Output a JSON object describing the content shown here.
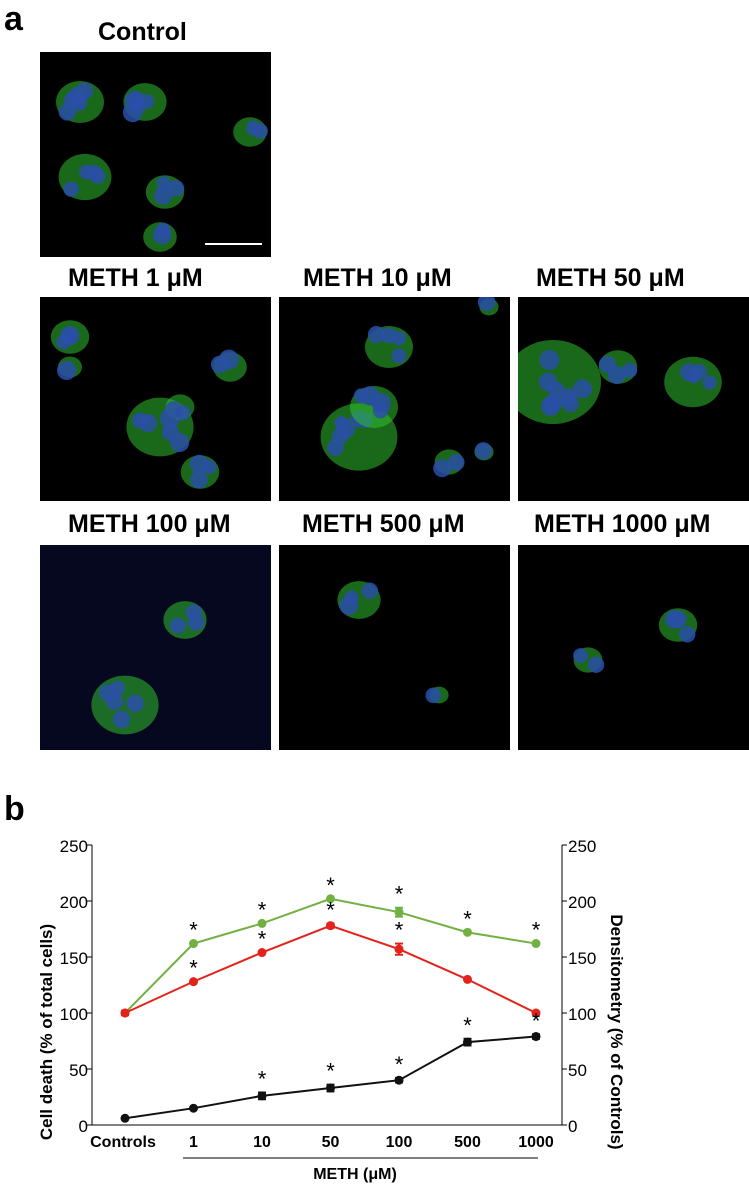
{
  "panel_a": {
    "letter": "a",
    "images": [
      {
        "label": "Control",
        "cells": "control",
        "background": "#000000"
      },
      {
        "label": "METH 1 μM",
        "cells": "meth1",
        "background": "#000000"
      },
      {
        "label": "METH 10 μM",
        "cells": "meth10",
        "background": "#000000"
      },
      {
        "label": "METH 50 μM",
        "cells": "meth50",
        "background": "#000000"
      },
      {
        "label": "METH 100 μM",
        "cells": "meth100",
        "background": "#05081e"
      },
      {
        "label": "METH 500 μM",
        "cells": "meth500",
        "background": "#000000"
      },
      {
        "label": "METH 1000 μM",
        "cells": "meth1000",
        "background": "#000000"
      }
    ],
    "colors": {
      "membrane": "#2fbf2f",
      "nucleus": "#2a4fa8"
    }
  },
  "panel_b": {
    "letter": "b"
  },
  "chart_data": {
    "type": "line",
    "categories": [
      "Controls",
      "1",
      "10",
      "50",
      "100",
      "500",
      "1000"
    ],
    "xlabel": "METH (μM)",
    "ylabel_left": "Cell death (% of total cells)",
    "ylabel_right": "Densitometry (% of Controls)",
    "ylim_left": [
      0,
      250
    ],
    "ylim_right": [
      0,
      250
    ],
    "yticks_left": [
      "0",
      "50",
      "100",
      "150",
      "200",
      "250"
    ],
    "yticks_right": [
      "0",
      "50",
      "100",
      "150",
      "200",
      "250"
    ],
    "grid": false,
    "significance_marker": "*",
    "series": [
      {
        "color": "#72b043",
        "axis": "right",
        "values": [
          100,
          162,
          180,
          202,
          190,
          172,
          162
        ],
        "errors": [
          0,
          0,
          0,
          0,
          4,
          0,
          0
        ],
        "significant": [
          false,
          true,
          true,
          true,
          true,
          true,
          true
        ]
      },
      {
        "color": "#e3231b",
        "axis": "left",
        "values": [
          100,
          128,
          154,
          178,
          157,
          130,
          100
        ],
        "errors": [
          2,
          0,
          0,
          2,
          5,
          0,
          0
        ],
        "significant": [
          false,
          true,
          true,
          true,
          true,
          false,
          false
        ]
      },
      {
        "color": "#111111",
        "axis": "left",
        "values": [
          6,
          15,
          26,
          33,
          40,
          74,
          79
        ],
        "errors": [
          0,
          0,
          3,
          3,
          2,
          3,
          2
        ],
        "significant": [
          false,
          false,
          true,
          true,
          true,
          true,
          true
        ]
      }
    ]
  }
}
